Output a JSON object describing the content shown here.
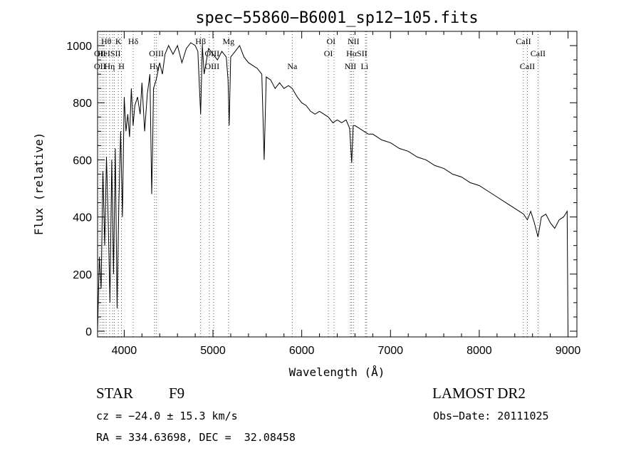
{
  "chart_data": {
    "type": "line",
    "title": "spec−55860−B6001_sp12−105.fits",
    "xlabel": "Wavelength (Å)",
    "ylabel": "Flux (relative)",
    "xlim": [
      3700,
      9100
    ],
    "ylim": [
      -20,
      1050
    ],
    "xticks": [
      4000,
      5000,
      6000,
      7000,
      8000,
      9000
    ],
    "yticks": [
      0,
      200,
      400,
      600,
      800,
      1000
    ],
    "grid": false,
    "legend": "none",
    "series": [
      {
        "values_x": [
          3700,
          3720,
          3740,
          3760,
          3780,
          3800,
          3820,
          3840,
          3860,
          3880,
          3900,
          3920,
          3940,
          3960,
          3980,
          4000,
          4020,
          4040,
          4060,
          4080,
          4100,
          4120,
          4150,
          4180,
          4200,
          4230,
          4260,
          4290,
          4310,
          4320,
          4330,
          4360,
          4400,
          4430,
          4460,
          4500,
          4550,
          4600,
          4650,
          4700,
          4750,
          4800,
          4830,
          4861,
          4880,
          4900,
          4950,
          5000,
          5050,
          5100,
          5150,
          5170,
          5183,
          5200,
          5250,
          5300,
          5350,
          5400,
          5450,
          5500,
          5550,
          5577,
          5600,
          5650,
          5700,
          5750,
          5800,
          5850,
          5893,
          5950,
          6000,
          6050,
          6100,
          6150,
          6200,
          6250,
          6300,
          6350,
          6400,
          6450,
          6500,
          6540,
          6563,
          6580,
          6600,
          6650,
          6700,
          6750,
          6800,
          6850,
          6900,
          6950,
          7000,
          7100,
          7200,
          7300,
          7400,
          7500,
          7600,
          7700,
          7800,
          7900,
          8000,
          8100,
          8200,
          8300,
          8400,
          8450,
          8500,
          8542,
          8580,
          8620,
          8662,
          8700,
          8750,
          8800,
          8850,
          8900,
          8950,
          8990,
          9000
        ],
        "values_y": [
          0,
          260,
          150,
          560,
          300,
          610,
          380,
          100,
          600,
          200,
          640,
          80,
          450,
          700,
          400,
          820,
          700,
          760,
          680,
          850,
          720,
          790,
          820,
          760,
          870,
          700,
          830,
          900,
          480,
          640,
          850,
          880,
          940,
          900,
          970,
          1000,
          970,
          1000,
          940,
          990,
          1010,
          1000,
          980,
          760,
          1000,
          900,
          990,
          970,
          950,
          980,
          960,
          880,
          720,
          960,
          980,
          1000,
          960,
          940,
          930,
          920,
          900,
          600,
          890,
          880,
          850,
          870,
          850,
          860,
          850,
          820,
          800,
          790,
          770,
          760,
          770,
          760,
          750,
          730,
          740,
          730,
          740,
          710,
          590,
          720,
          720,
          710,
          700,
          690,
          690,
          680,
          670,
          665,
          660,
          640,
          630,
          610,
          600,
          580,
          570,
          550,
          540,
          520,
          510,
          490,
          470,
          450,
          430,
          420,
          410,
          390,
          420,
          380,
          330,
          400,
          410,
          380,
          360,
          390,
          400,
          420,
          0
        ]
      }
    ],
    "lines": [
      {
        "label": "Hθ",
        "x": 3798,
        "row": 1
      },
      {
        "label": "K",
        "x": 3934,
        "row": 1
      },
      {
        "label": "Hδ",
        "x": 4102,
        "row": 1
      },
      {
        "label": "OII",
        "x": 3727,
        "row": 2
      },
      {
        "label": "HeISII",
        "x": 3830,
        "row": 2
      },
      {
        "label": "OIII",
        "x": 4363,
        "row": 2
      },
      {
        "label": "OII",
        "x": 3727,
        "row": 3
      },
      {
        "label": "Hη",
        "x": 3835,
        "row": 3
      },
      {
        "label": "H",
        "x": 3969,
        "row": 3
      },
      {
        "label": "Hγ",
        "x": 4341,
        "row": 3
      },
      {
        "label": "Hβ",
        "x": 4861,
        "row": 1
      },
      {
        "label": "Mg",
        "x": 5175,
        "row": 1
      },
      {
        "label": "OIII",
        "x": 4990,
        "row": 2
      },
      {
        "label": "OIII",
        "x": 4990,
        "row": 3
      },
      {
        "label": "Na",
        "x": 5893,
        "row": 3
      },
      {
        "label": "OI",
        "x": 6330,
        "row": 1
      },
      {
        "label": "NII",
        "x": 6583,
        "row": 1
      },
      {
        "label": "OI",
        "x": 6300,
        "row": 2
      },
      {
        "label": "HαSII",
        "x": 6620,
        "row": 2
      },
      {
        "label": "NII",
        "x": 6548,
        "row": 3
      },
      {
        "label": "Li",
        "x": 6708,
        "row": 3
      },
      {
        "label": "CaII",
        "x": 8498,
        "row": 1
      },
      {
        "label": "CaII",
        "x": 8662,
        "row": 2
      },
      {
        "label": "CaII",
        "x": 8542,
        "row": 3
      }
    ],
    "line_positions": [
      3727,
      3750,
      3771,
      3798,
      3835,
      3869,
      3889,
      3934,
      3969,
      4102,
      4341,
      4363,
      4861,
      4959,
      5007,
      5175,
      5893,
      6300,
      6363,
      6548,
      6563,
      6583,
      6717,
      6731,
      8498,
      8542,
      8662
    ]
  },
  "info": {
    "object_class": "STAR",
    "subclass": "F9",
    "survey": "LAMOST DR2",
    "cz": "cz = −24.0 ± 15.3 km/s",
    "obs_date": "Obs−Date: 20111025",
    "coords": "RA = 334.63698, DEC =  32.08458"
  }
}
